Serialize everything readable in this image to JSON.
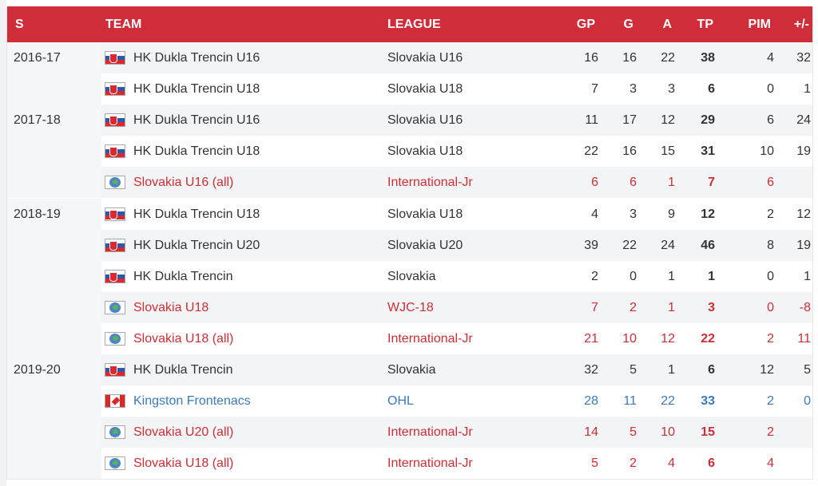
{
  "headers": {
    "season": "S",
    "team": "TEAM",
    "league": "LEAGUE",
    "gp": "GP",
    "g": "G",
    "a": "A",
    "tp": "TP",
    "pim": "PIM",
    "pm": "+/-"
  },
  "rows": [
    {
      "season": "2016-17",
      "flag": "slovakia-flag-icon",
      "team": "HK Dukla Trencin U16",
      "league": "Slovakia U16",
      "gp": "16",
      "g": "16",
      "a": "22",
      "tp": "38",
      "pim": "4",
      "pm": "32",
      "style": "normal",
      "striped": true
    },
    {
      "season": "",
      "flag": "slovakia-flag-icon",
      "team": "HK Dukla Trencin U18",
      "league": "Slovakia U18",
      "gp": "7",
      "g": "3",
      "a": "3",
      "tp": "6",
      "pim": "0",
      "pm": "1",
      "style": "normal",
      "striped": false
    },
    {
      "season": "2017-18",
      "flag": "slovakia-flag-icon",
      "team": "HK Dukla Trencin U16",
      "league": "Slovakia U16",
      "gp": "11",
      "g": "17",
      "a": "12",
      "tp": "29",
      "pim": "6",
      "pm": "24",
      "style": "normal",
      "striped": true
    },
    {
      "season": "",
      "flag": "slovakia-flag-icon",
      "team": "HK Dukla Trencin U18",
      "league": "Slovakia U18",
      "gp": "22",
      "g": "16",
      "a": "15",
      "tp": "31",
      "pim": "10",
      "pm": "19",
      "style": "normal",
      "striped": false
    },
    {
      "season": "",
      "flag": "globe-icon",
      "team": "Slovakia U16 (all)",
      "league": "International-Jr",
      "gp": "6",
      "g": "6",
      "a": "1",
      "tp": "7",
      "pim": "6",
      "pm": "",
      "style": "intl",
      "striped": true
    },
    {
      "season": "2018-19",
      "flag": "slovakia-flag-icon",
      "team": "HK Dukla Trencin U18",
      "league": "Slovakia U18",
      "gp": "4",
      "g": "3",
      "a": "9",
      "tp": "12",
      "pim": "2",
      "pm": "12",
      "style": "normal",
      "striped": false
    },
    {
      "season": "",
      "flag": "slovakia-flag-icon",
      "team": "HK Dukla Trencin U20",
      "league": "Slovakia U20",
      "gp": "39",
      "g": "22",
      "a": "24",
      "tp": "46",
      "pim": "8",
      "pm": "19",
      "style": "normal",
      "striped": true
    },
    {
      "season": "",
      "flag": "slovakia-flag-icon",
      "team": "HK Dukla Trencin",
      "league": "Slovakia",
      "gp": "2",
      "g": "0",
      "a": "1",
      "tp": "1",
      "pim": "0",
      "pm": "1",
      "style": "normal",
      "striped": false
    },
    {
      "season": "",
      "flag": "globe-icon",
      "team": "Slovakia U18",
      "league": "WJC-18",
      "gp": "7",
      "g": "2",
      "a": "1",
      "tp": "3",
      "pim": "0",
      "pm": "-8",
      "style": "intl",
      "striped": true
    },
    {
      "season": "",
      "flag": "globe-icon",
      "team": "Slovakia U18 (all)",
      "league": "International-Jr",
      "gp": "21",
      "g": "10",
      "a": "12",
      "tp": "22",
      "pim": "2",
      "pm": "11",
      "style": "intl",
      "striped": false
    },
    {
      "season": "2019-20",
      "flag": "slovakia-flag-icon",
      "team": "HK Dukla Trencin",
      "league": "Slovakia",
      "gp": "32",
      "g": "5",
      "a": "1",
      "tp": "6",
      "pim": "12",
      "pm": "5",
      "style": "normal",
      "striped": true
    },
    {
      "season": "",
      "flag": "canada-flag-icon",
      "team": "Kingston Frontenacs",
      "league": "OHL",
      "gp": "28",
      "g": "11",
      "a": "22",
      "tp": "33",
      "pim": "2",
      "pm": "0",
      "style": "ohl",
      "striped": false
    },
    {
      "season": "",
      "flag": "globe-icon",
      "team": "Slovakia U20 (all)",
      "league": "International-Jr",
      "gp": "14",
      "g": "5",
      "a": "10",
      "tp": "15",
      "pim": "2",
      "pm": "",
      "style": "intl",
      "striped": true
    },
    {
      "season": "",
      "flag": "globe-icon",
      "team": "Slovakia U18 (all)",
      "league": "International-Jr",
      "gp": "5",
      "g": "2",
      "a": "4",
      "tp": "6",
      "pim": "4",
      "pm": "",
      "style": "intl",
      "striped": false
    }
  ]
}
